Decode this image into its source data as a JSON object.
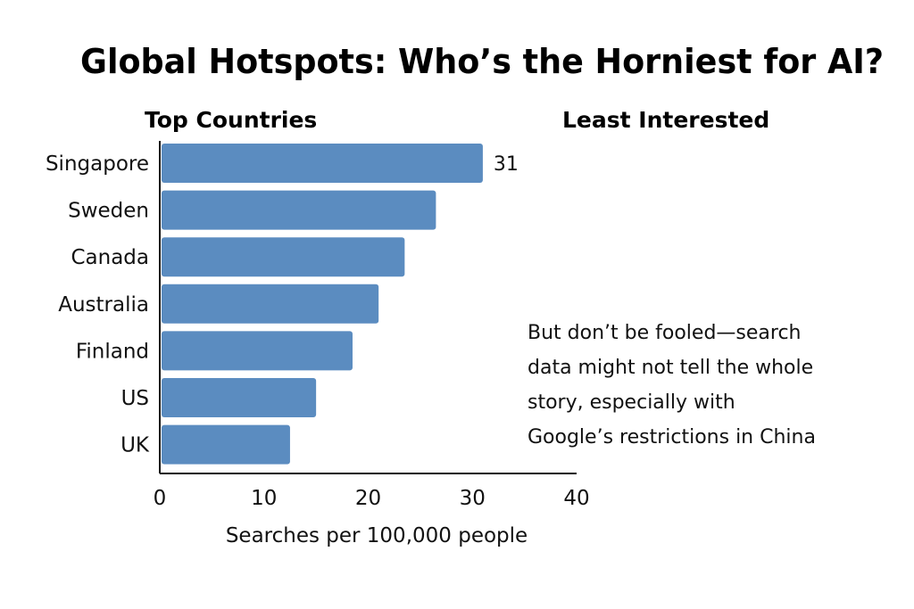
{
  "chart_data": {
    "type": "bar",
    "orientation": "horizontal",
    "title": "Global Hotspots: Who’s the Horniest for AI?",
    "left_heading": "Top Countries",
    "right_heading": "Least Interested",
    "categories": [
      "Singapore",
      "Sweden",
      "Canada",
      "Australia",
      "Finland",
      "US",
      "UK"
    ],
    "values": [
      31,
      26.5,
      23.5,
      21,
      18.5,
      15,
      12.5
    ],
    "data_labels": [
      {
        "category": "Singapore",
        "label": "31"
      }
    ],
    "xlabel": "Searches per 100,000 people",
    "ylabel": "",
    "xlim": [
      0,
      40
    ],
    "x_ticks": [
      "0",
      "10",
      "20",
      "30",
      "40"
    ],
    "grid": false,
    "bar_color": "#5b8cc0",
    "annotation_lines": [
      "But don’t be fooled—search",
      "data might not tell the whole",
      "story, especially with",
      "Google’s restrictions in China"
    ]
  }
}
